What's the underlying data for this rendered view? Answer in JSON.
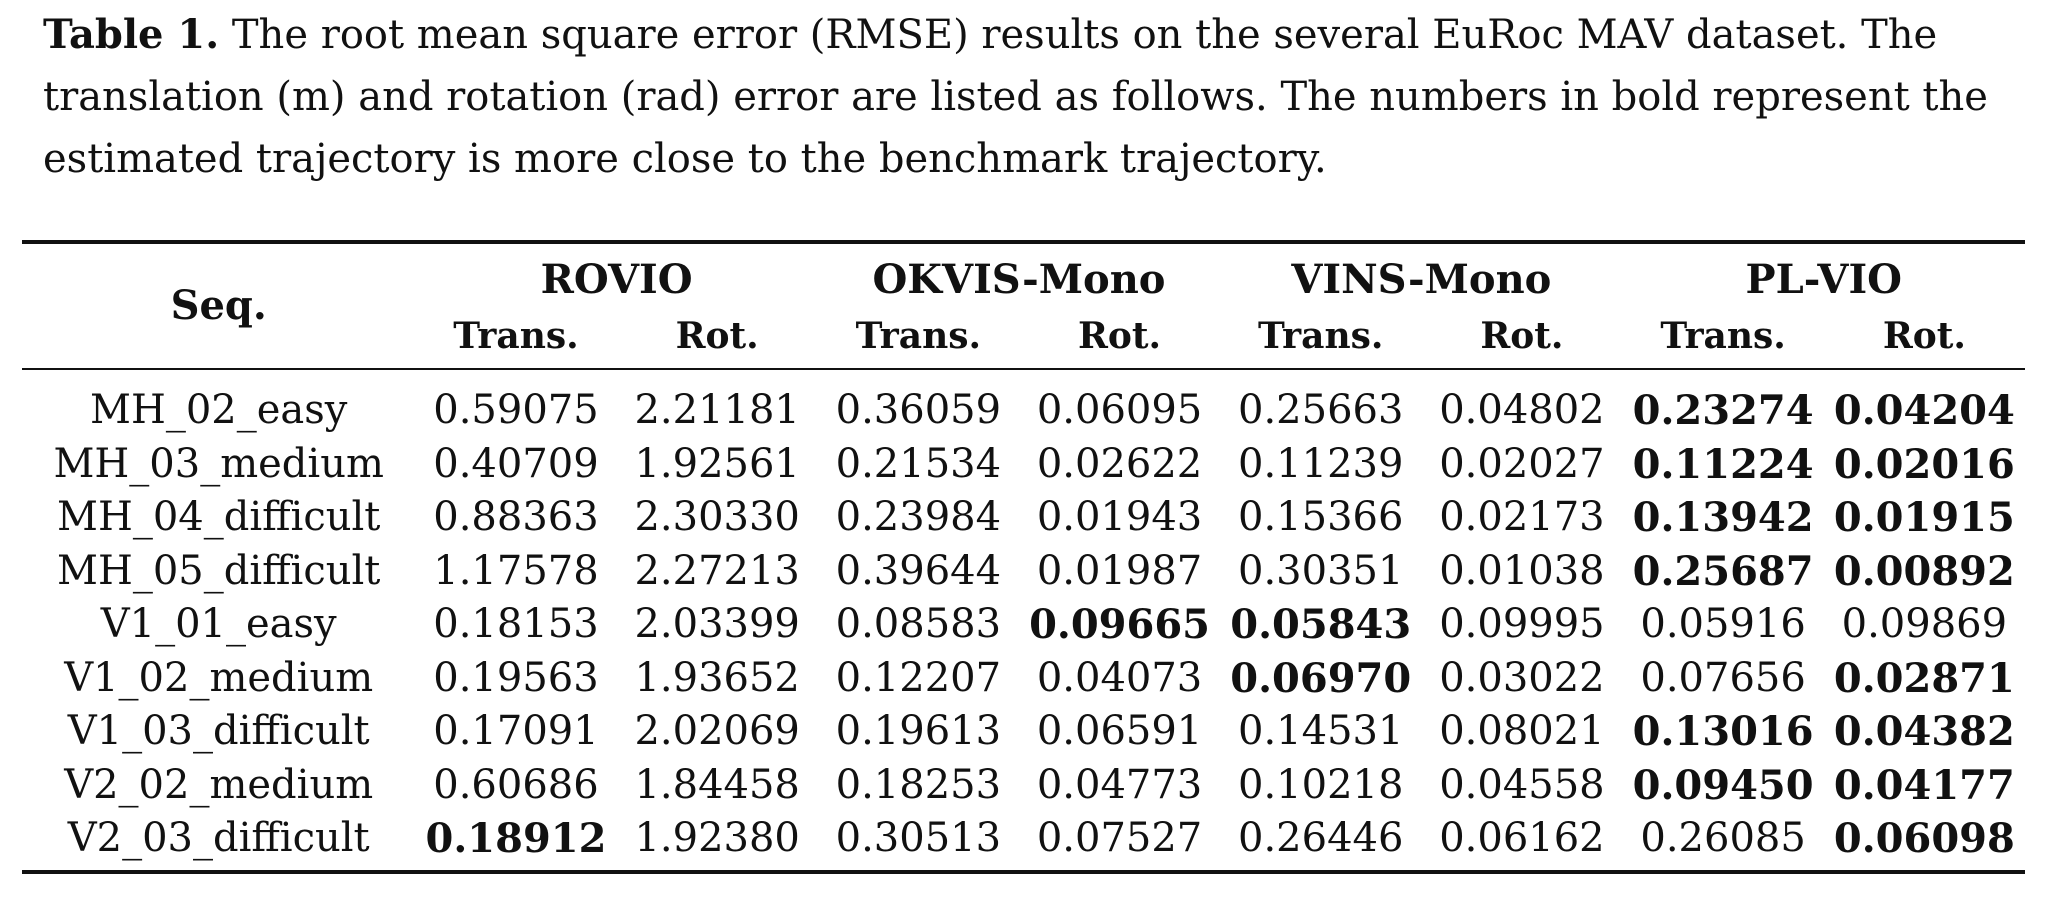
{
  "caption": {
    "label": "Table 1.",
    "text": "The root mean square error (RMSE) results on the several EuRoc MAV dataset. The translation (m) and rotation (rad) error are listed as follows. The numbers in bold represent the estimated trajectory is more close to the benchmark trajectory."
  },
  "table": {
    "seq_header": "Seq.",
    "methods": [
      "ROVIO",
      "OKVIS-Mono",
      "VINS-Mono",
      "PL-VIO"
    ],
    "sub_headers": [
      "Trans.",
      "Rot."
    ],
    "rows": [
      {
        "seq": "MH_02_easy",
        "values": [
          "0.59075",
          "2.21181",
          "0.36059",
          "0.06095",
          "0.25663",
          "0.04802",
          "0.23274",
          "0.04204"
        ],
        "bold": [
          false,
          false,
          false,
          false,
          false,
          false,
          true,
          true
        ]
      },
      {
        "seq": "MH_03_medium",
        "values": [
          "0.40709",
          "1.92561",
          "0.21534",
          "0.02622",
          "0.11239",
          "0.02027",
          "0.11224",
          "0.02016"
        ],
        "bold": [
          false,
          false,
          false,
          false,
          false,
          false,
          true,
          true
        ]
      },
      {
        "seq": "MH_04_difficult",
        "values": [
          "0.88363",
          "2.30330",
          "0.23984",
          "0.01943",
          "0.15366",
          "0.02173",
          "0.13942",
          "0.01915"
        ],
        "bold": [
          false,
          false,
          false,
          false,
          false,
          false,
          true,
          true
        ]
      },
      {
        "seq": "MH_05_difficult",
        "values": [
          "1.17578",
          "2.27213",
          "0.39644",
          "0.01987",
          "0.30351",
          "0.01038",
          "0.25687",
          "0.00892"
        ],
        "bold": [
          false,
          false,
          false,
          false,
          false,
          false,
          true,
          true
        ]
      },
      {
        "seq": "V1_01_easy",
        "values": [
          "0.18153",
          "2.03399",
          "0.08583",
          "0.09665",
          "0.05843",
          "0.09995",
          "0.05916",
          "0.09869"
        ],
        "bold": [
          false,
          false,
          false,
          true,
          true,
          false,
          false,
          false
        ]
      },
      {
        "seq": "V1_02_medium",
        "values": [
          "0.19563",
          "1.93652",
          "0.12207",
          "0.04073",
          "0.06970",
          "0.03022",
          "0.07656",
          "0.02871"
        ],
        "bold": [
          false,
          false,
          false,
          false,
          true,
          false,
          false,
          true
        ]
      },
      {
        "seq": "V1_03_difficult",
        "values": [
          "0.17091",
          "2.02069",
          "0.19613",
          "0.06591",
          "0.14531",
          "0.08021",
          "0.13016",
          "0.04382"
        ],
        "bold": [
          false,
          false,
          false,
          false,
          false,
          false,
          true,
          true
        ]
      },
      {
        "seq": "V2_02_medium",
        "values": [
          "0.60686",
          "1.84458",
          "0.18253",
          "0.04773",
          "0.10218",
          "0.04558",
          "0.09450",
          "0.04177"
        ],
        "bold": [
          false,
          false,
          false,
          false,
          false,
          false,
          true,
          true
        ]
      },
      {
        "seq": "V2_03_difficult",
        "values": [
          "0.18912",
          "1.92380",
          "0.30513",
          "0.07527",
          "0.26446",
          "0.06162",
          "0.26085",
          "0.06098"
        ],
        "bold": [
          true,
          false,
          false,
          false,
          false,
          false,
          false,
          true
        ]
      }
    ]
  }
}
